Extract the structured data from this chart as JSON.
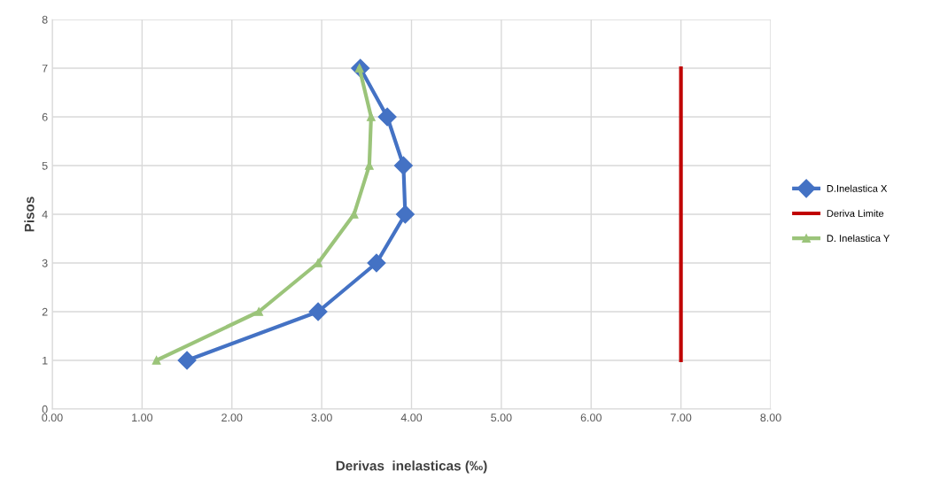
{
  "chart_data": {
    "type": "line",
    "xlabel": "Derivas  inelasticas (‰)",
    "ylabel": "Pisos",
    "xlim": [
      0,
      8
    ],
    "ylim": [
      0,
      8
    ],
    "xticks": [
      {
        "value": 0,
        "label": "0.00"
      },
      {
        "value": 1,
        "label": "1.00"
      },
      {
        "value": 2,
        "label": "2.00"
      },
      {
        "value": 3,
        "label": "3.00"
      },
      {
        "value": 4,
        "label": "4.00"
      },
      {
        "value": 5,
        "label": "5.00"
      },
      {
        "value": 6,
        "label": "6.00"
      },
      {
        "value": 7,
        "label": "7.00"
      },
      {
        "value": 8,
        "label": "8.00"
      }
    ],
    "yticks": [
      0,
      1,
      2,
      3,
      4,
      5,
      6,
      7,
      8
    ],
    "grid": true,
    "legend": "right",
    "series": [
      {
        "name": "D.Inelastica X",
        "color": "#4472c4",
        "marker": "diamond",
        "x": [
          1.5,
          2.96,
          3.61,
          3.93,
          3.91,
          3.73,
          3.43
        ],
        "values": [
          1,
          2,
          3,
          4,
          5,
          6,
          7
        ]
      },
      {
        "name": "Deriva Limite",
        "color": "#c00000",
        "marker": "none",
        "x": [
          7,
          7
        ],
        "values": [
          1,
          7
        ]
      },
      {
        "name": "D. Inelastica Y",
        "color": "#9bc47a",
        "marker": "triangle",
        "x": [
          1.16,
          2.3,
          2.96,
          3.36,
          3.53,
          3.55,
          3.42
        ],
        "values": [
          1,
          2,
          3,
          4,
          5,
          6,
          7
        ]
      }
    ]
  }
}
